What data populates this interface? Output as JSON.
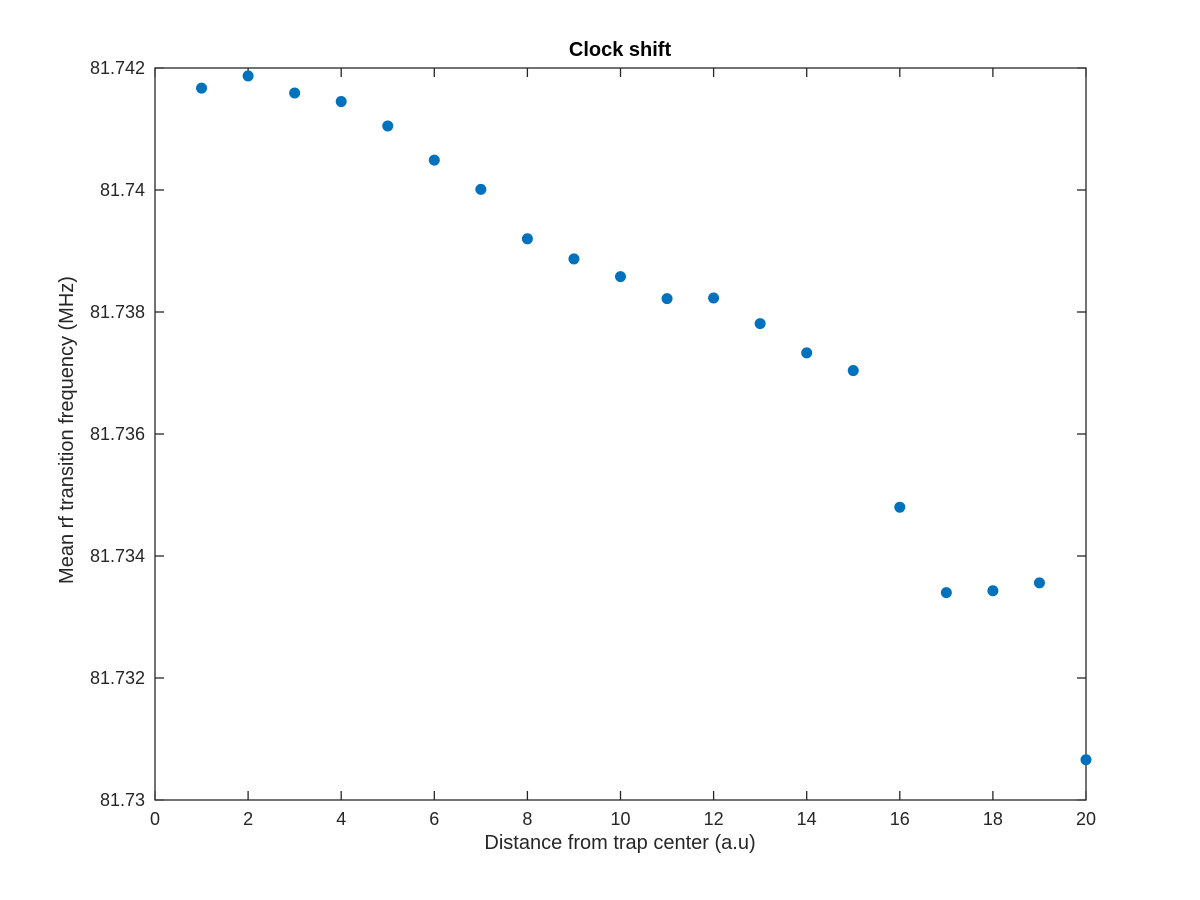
{
  "chart_data": {
    "type": "scatter",
    "title": "Clock shift",
    "xlabel": "Distance from trap center (a.u)",
    "ylabel": "Mean rf transition frequency (MHz)",
    "xlim": [
      0,
      20
    ],
    "ylim": [
      81.73,
      81.742
    ],
    "xticks": [
      0,
      2,
      4,
      6,
      8,
      10,
      12,
      14,
      16,
      18,
      20
    ],
    "xtick_labels": [
      "0",
      "2",
      "4",
      "6",
      "8",
      "10",
      "12",
      "14",
      "16",
      "18",
      "20"
    ],
    "yticks": [
      81.73,
      81.732,
      81.734,
      81.736,
      81.738,
      81.74,
      81.742
    ],
    "ytick_labels": [
      "81.73",
      "81.732",
      "81.734",
      "81.736",
      "81.738",
      "81.74",
      "81.742"
    ],
    "grid": false,
    "marker_color": "#0072BD",
    "series": [
      {
        "x": [
          1,
          2,
          3,
          4,
          5,
          6,
          7,
          8,
          9,
          10,
          11,
          12,
          13,
          14,
          15,
          16,
          17,
          18,
          19,
          20
        ],
        "y": [
          81.74167,
          81.74187,
          81.74159,
          81.74145,
          81.74105,
          81.74049,
          81.74001,
          81.7392,
          81.73887,
          81.73858,
          81.73822,
          81.73823,
          81.73781,
          81.73733,
          81.73704,
          81.7348,
          81.7334,
          81.73343,
          81.73356,
          81.73066
        ]
      }
    ]
  }
}
